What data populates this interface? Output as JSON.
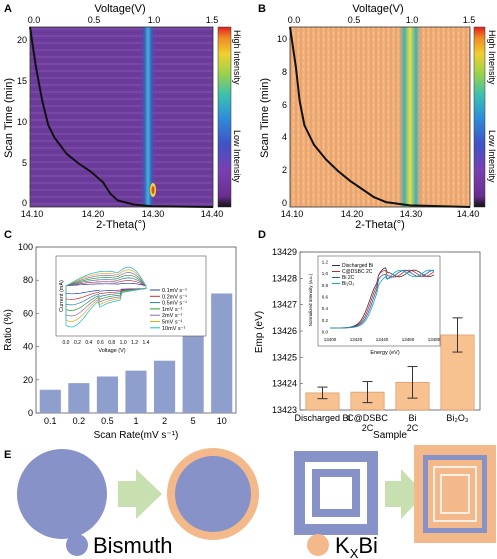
{
  "panel_labels": {
    "a": "A",
    "b": "B",
    "c": "C",
    "d": "D",
    "e": "E"
  },
  "colors": {
    "bar_c": "#8e9fce",
    "bar_d": "#f7c190",
    "bismuth": "#8792c9",
    "kxbi": "#f3b98a",
    "arrow": "#c8e0b0",
    "heat_bg": "#6a3a98",
    "heat_peak": "#f2d63a"
  },
  "heatmap_a": {
    "top_axis_title": "Voltage(V)",
    "top_ticks": [
      "0.0",
      "0.5",
      "1.0",
      "1.5"
    ],
    "x_title": "2-Theta(°)",
    "x_ticks": [
      "14.10",
      "14.20",
      "14.30",
      "14.40"
    ],
    "y_title": "Scan Time (min)",
    "y_ticks": [
      "0",
      "5",
      "10",
      "15",
      "20"
    ],
    "colorbar_high": "High Intensity",
    "colorbar_low": "Low Intensity"
  },
  "heatmap_b": {
    "top_axis_title": "Voltage(V)",
    "top_ticks": [
      "0.0",
      "0.5",
      "1.0",
      "1.5"
    ],
    "x_title": "2-Theta(°)",
    "x_ticks": [
      "14.10",
      "14.20",
      "14.30",
      "14.40"
    ],
    "y_title": "Scan Time (min)",
    "y_ticks": [
      "0",
      "2",
      "4",
      "6",
      "8",
      "10"
    ],
    "colorbar_high": "High Intensity",
    "colorbar_low": "Low Intensity"
  },
  "chart_data": [
    {
      "type": "heatmap",
      "panel": "A",
      "x_range": [
        14.1,
        14.4
      ],
      "y_range": [
        0,
        22
      ],
      "voltage_range": [
        0.0,
        1.5
      ],
      "peak_two_theta": 14.3,
      "voltage_curve": [
        [
          0.0,
          22
        ],
        [
          0.02,
          20
        ],
        [
          0.05,
          17
        ],
        [
          0.1,
          13
        ],
        [
          0.15,
          10
        ],
        [
          0.2,
          8.5
        ],
        [
          0.3,
          6.5
        ],
        [
          0.4,
          5.3
        ],
        [
          0.5,
          4.3
        ],
        [
          0.6,
          3.0
        ],
        [
          0.66,
          1.6
        ],
        [
          0.72,
          0.8
        ],
        [
          0.85,
          0.3
        ],
        [
          1.0,
          0.1
        ],
        [
          1.5,
          0.0
        ]
      ]
    },
    {
      "type": "heatmap",
      "panel": "B",
      "x_range": [
        14.1,
        14.4
      ],
      "y_range": [
        0,
        11
      ],
      "voltage_range": [
        0.0,
        1.5
      ],
      "peak_two_theta": 14.3,
      "voltage_curve": [
        [
          0.0,
          11
        ],
        [
          0.02,
          10
        ],
        [
          0.05,
          8.5
        ],
        [
          0.08,
          6.5
        ],
        [
          0.12,
          5.0
        ],
        [
          0.2,
          3.8
        ],
        [
          0.3,
          2.9
        ],
        [
          0.4,
          2.2
        ],
        [
          0.5,
          1.6
        ],
        [
          0.6,
          1.1
        ],
        [
          0.7,
          0.6
        ],
        [
          0.8,
          0.3
        ],
        [
          1.0,
          0.1
        ],
        [
          1.5,
          0.0
        ]
      ]
    },
    {
      "type": "bar",
      "panel": "C",
      "categories": [
        "0.1",
        "0.2",
        "0.5",
        "1",
        "2",
        "5",
        "10"
      ],
      "values": [
        14,
        18,
        22,
        25.5,
        31.5,
        48,
        72
      ],
      "xlabel": "Scan Rate(mV s⁻¹)",
      "ylabel": "Ratio (%)",
      "ylim": [
        0,
        100
      ],
      "y_ticks": [
        "0",
        "20",
        "40",
        "60",
        "80",
        "100"
      ],
      "inset": {
        "type": "line",
        "xlabel": "Voltage (V)",
        "ylabel": "Current (mA)",
        "x_ticks": [
          "0.0",
          "0.2",
          "0.4",
          "0.6",
          "0.8",
          "1.0",
          "1.2",
          "1.4"
        ],
        "series": [
          {
            "name": "0.1mV s⁻¹",
            "color": "#1f3fbf"
          },
          {
            "name": "0.2mV s⁻¹",
            "color": "#d62728"
          },
          {
            "name": "0.5mV s⁻¹",
            "color": "#2a7ab5"
          },
          {
            "name": "1mV s⁻¹",
            "color": "#2ca02c"
          },
          {
            "name": "2mV s⁻¹",
            "color": "#9467bd"
          },
          {
            "name": "5mV s⁻¹",
            "color": "#e6a817"
          },
          {
            "name": "10mV s⁻¹",
            "color": "#17becf"
          }
        ]
      }
    },
    {
      "type": "bar",
      "panel": "D",
      "categories": [
        "Discharged Bi",
        "C@DSBC 2C",
        "Bi 2C",
        "Bi2O3"
      ],
      "values": [
        13423.65,
        13423.68,
        13424.05,
        13425.85
      ],
      "errors": [
        0.22,
        0.4,
        0.6,
        0.65
      ],
      "xlabel": "Sample",
      "ylabel": "Emp (eV)",
      "ylim": [
        13423,
        13429
      ],
      "y_ticks": [
        "13423",
        "13424",
        "13425",
        "13426",
        "13427",
        "13428",
        "13429"
      ],
      "inset": {
        "type": "line",
        "xlabel": "Energy (eV)",
        "ylabel": "Normalized Intensity (a.u.)",
        "x_ticks": [
          "13400",
          "13420",
          "13440",
          "13460",
          "13480"
        ],
        "y_ticks": [
          "0.0",
          "0.2",
          "0.4",
          "0.6",
          "0.8",
          "1.0",
          "1.2"
        ],
        "series": [
          {
            "name": "Discharged Bi",
            "color": "#333333"
          },
          {
            "name": "C@DSBC 2C",
            "color": "#d62728"
          },
          {
            "name": "Bi 2C",
            "color": "#1f5fbf"
          },
          {
            "name": "Bi₂O₃",
            "color": "#17a2b8"
          }
        ]
      }
    }
  ],
  "d_tick_labels": [
    {
      "line1": "Discharged Bi",
      "line2": ""
    },
    {
      "line1": "C@DSBC",
      "line2": "2C"
    },
    {
      "line1": "Bi",
      "line2": "2C"
    },
    {
      "line1": "Bi₂O₃",
      "line2": ""
    }
  ],
  "legend_e": {
    "bismuth_label": "Bismuth",
    "kxbi_main": "K",
    "kxbi_sub": "X",
    "kxbi_tail": "Bi"
  }
}
